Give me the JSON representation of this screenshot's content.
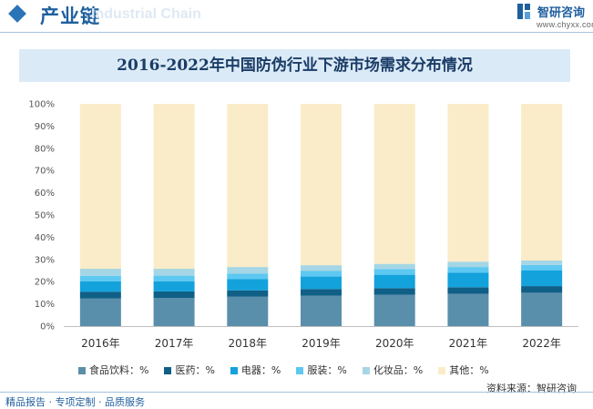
{
  "header": {
    "title": "产业链",
    "watermark": "Industrial Chain",
    "brand": "智研咨询",
    "site": "www.chyxx.com"
  },
  "footer": {
    "slogan": "精品报告 · 专项定制 · 品质服务",
    "source": "资料来源：智研咨询"
  },
  "colors": {
    "accent": "#1f5f9e",
    "title_band": "#dbeaf7"
  },
  "chart_data": {
    "type": "bar",
    "stacked": true,
    "title": "2016-2022年中国防伪行业下游市场需求分布情况",
    "categories": [
      "2016年",
      "2017年",
      "2018年",
      "2019年",
      "2020年",
      "2021年",
      "2022年"
    ],
    "ylim": [
      0,
      100
    ],
    "yticks": [
      "0%",
      "10%",
      "20%",
      "30%",
      "40%",
      "50%",
      "60%",
      "70%",
      "80%",
      "90%",
      "100%"
    ],
    "grid": false,
    "legend_position": "bottom",
    "series": [
      {
        "name": "食品饮料：%",
        "color": "#5a8fab",
        "values": [
          12.5,
          12.6,
          13.2,
          13.7,
          14.1,
          14.5,
          15.0
        ]
      },
      {
        "name": "医药：%",
        "color": "#0f5f86",
        "values": [
          3.0,
          3.0,
          2.9,
          3.0,
          3.0,
          3.0,
          3.0
        ]
      },
      {
        "name": "电器：%",
        "color": "#13a2dc",
        "values": [
          4.6,
          4.6,
          5.0,
          5.6,
          6.0,
          6.6,
          7.0
        ]
      },
      {
        "name": "服装：%",
        "color": "#5dc8f1",
        "values": [
          2.5,
          2.5,
          2.5,
          2.5,
          2.5,
          2.5,
          2.5
        ]
      },
      {
        "name": "化妆品：%",
        "color": "#a4d6e5",
        "values": [
          3.2,
          3.1,
          3.0,
          2.6,
          2.4,
          2.4,
          2.0
        ]
      },
      {
        "name": "其他：%",
        "color": "#faecc8",
        "values": [
          74.2,
          74.2,
          73.4,
          72.6,
          72.0,
          71.0,
          70.5
        ]
      }
    ]
  }
}
